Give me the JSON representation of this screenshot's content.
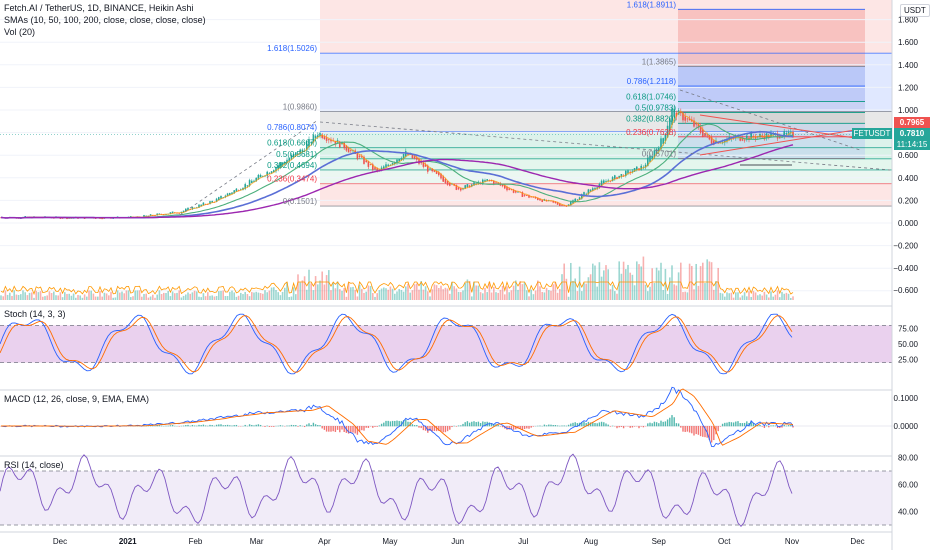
{
  "header": {
    "title": "Fetch.AI / TetherUS, 1D, BINANCE, Heikin Ashi",
    "sma_label": "SMAs (10, 50, 100, 200, close, close, close, close)",
    "vol_label": "Vol (20)"
  },
  "currency": "USDT",
  "price_tag": {
    "symbol": "FETUSDT",
    "price": "0.7810",
    "countdown": "11:14:15",
    "prev": "0.7965"
  },
  "panes": {
    "stoch": "Stoch (14, 3, 3)",
    "macd": "MACD (12, 26, close, 9, EMA, EMA)",
    "rsi": "RSI (14, close)"
  },
  "colors": {
    "up": "#26a69a",
    "down": "#ef5350",
    "sma_blue": "#5b6fd6",
    "sma_purple": "#9c27b0",
    "sma_green": "#4caf7d",
    "sma_orange": "#ff9800",
    "stoch_band": "#e1bee7",
    "rsi_band": "#ede7f6"
  },
  "fib_left": [
    {
      "label": "1.618(1.5026)",
      "color": "#2962ff"
    },
    {
      "label": "1(0.9860)",
      "color": "#787b86"
    },
    {
      "label": "0.786(0.8074)",
      "color": "#2962ff"
    },
    {
      "label": "0.618(0.6667)",
      "color": "#089981"
    },
    {
      "label": "0.5(0.5681)",
      "color": "#089981"
    },
    {
      "label": "0.382(0.4694)",
      "color": "#089981"
    },
    {
      "label": "0.236(0.3474)",
      "color": "#f23645"
    },
    {
      "label": "0(0.1501)",
      "color": "#787b86"
    }
  ],
  "fib_right": [
    {
      "label": "1.618(1.8911)",
      "color": "#2962ff"
    },
    {
      "label": "1(1.3865)",
      "color": "#787b86"
    },
    {
      "label": "0.786(1.2118)",
      "color": "#2962ff"
    },
    {
      "label": "0.618(1.0746)",
      "color": "#089981"
    },
    {
      "label": "0.5(0.9783)",
      "color": "#089981"
    },
    {
      "label": "0.382(0.8820)",
      "color": "#089981"
    },
    {
      "label": "0.236(0.7628)",
      "color": "#f23645"
    },
    {
      "label": "0(0.5701)",
      "color": "#787b86"
    }
  ],
  "chart_data": {
    "type": "candlestick",
    "symbol": "FETUSDT",
    "exchange": "BINANCE",
    "interval": "1D",
    "price_axis": {
      "ticks": [
        "1.800",
        "1.600",
        "1.400",
        "1.200",
        "1.000",
        "0.800",
        "0.600",
        "0.400",
        "0.200",
        "0.000",
        "−0.200",
        "−0.400",
        "−0.600"
      ],
      "ylim": [
        -0.66,
        1.89
      ]
    },
    "x_ticks": [
      "Dec",
      "2021",
      "Feb",
      "Mar",
      "Apr",
      "May",
      "Jun",
      "Jul",
      "Aug",
      "Sep",
      "Oct",
      "Nov",
      "Dec"
    ],
    "price_series": [
      {
        "date": "2020-11-20",
        "value": 0.05
      },
      {
        "date": "2020-12-10",
        "value": 0.045
      },
      {
        "date": "2021-01-05",
        "value": 0.05
      },
      {
        "date": "2021-01-25",
        "value": 0.1
      },
      {
        "date": "2021-02-10",
        "value": 0.2
      },
      {
        "date": "2021-02-25",
        "value": 0.35
      },
      {
        "date": "2021-03-10",
        "value": 0.5
      },
      {
        "date": "2021-03-22",
        "value": 0.65
      },
      {
        "date": "2021-03-29",
        "value": 0.8
      },
      {
        "date": "2021-04-10",
        "value": 0.68
      },
      {
        "date": "2021-04-25",
        "value": 0.45
      },
      {
        "date": "2021-05-08",
        "value": 0.62
      },
      {
        "date": "2021-05-20",
        "value": 0.45
      },
      {
        "date": "2021-06-01",
        "value": 0.3
      },
      {
        "date": "2021-06-15",
        "value": 0.38
      },
      {
        "date": "2021-06-30",
        "value": 0.25
      },
      {
        "date": "2021-07-20",
        "value": 0.15
      },
      {
        "date": "2021-08-05",
        "value": 0.35
      },
      {
        "date": "2021-08-25",
        "value": 0.5
      },
      {
        "date": "2021-09-03",
        "value": 0.75
      },
      {
        "date": "2021-09-07",
        "value": 1.0
      },
      {
        "date": "2021-09-15",
        "value": 0.9
      },
      {
        "date": "2021-09-25",
        "value": 0.72
      },
      {
        "date": "2021-10-10",
        "value": 0.76
      },
      {
        "date": "2021-10-25",
        "value": 0.78
      },
      {
        "date": "2021-11-01",
        "value": 0.781
      }
    ],
    "sma": [
      {
        "name": "SMA 10"
      },
      {
        "name": "SMA 50"
      },
      {
        "name": "SMA 100"
      },
      {
        "name": "SMA 200"
      }
    ],
    "stoch": {
      "ticks": [
        "75.00",
        "50.00",
        "25.00"
      ],
      "band": [
        20,
        80
      ]
    },
    "macd": {
      "ticks": [
        "0.1000",
        "0.0000"
      ]
    },
    "rsi": {
      "ticks": [
        "80.00",
        "60.00",
        "40.00"
      ],
      "band": [
        30,
        70
      ]
    }
  }
}
